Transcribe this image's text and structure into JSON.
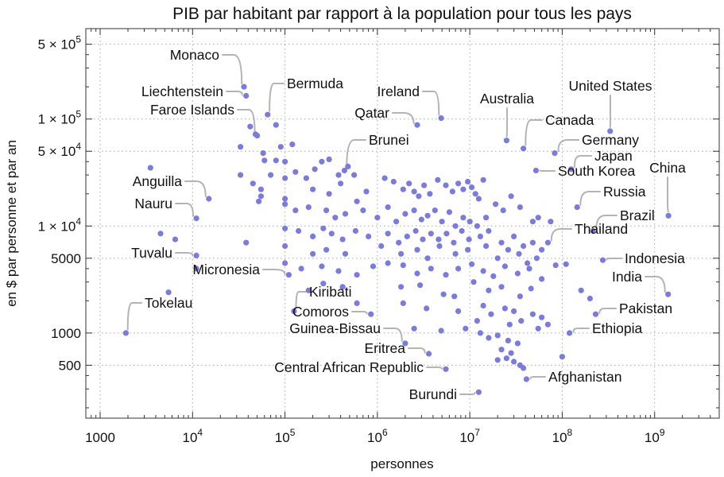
{
  "chart_data": {
    "type": "scatter",
    "title": "PIB par habitant par rapport à la population pour tous les pays",
    "xlabel": "personnes",
    "ylabel": "en $ par personne et par an",
    "xscale": "log",
    "yscale": "log",
    "xlim": [
      700,
      5000000000
    ],
    "ylim": [
      160,
      700000
    ],
    "grid": true,
    "x_ticks": [
      {
        "base": "1000",
        "exp": ""
      },
      {
        "base": "10",
        "exp": "4"
      },
      {
        "base": "10",
        "exp": "5"
      },
      {
        "base": "10",
        "exp": "6"
      },
      {
        "base": "10",
        "exp": "7"
      },
      {
        "base": "10",
        "exp": "8"
      },
      {
        "base": "10",
        "exp": "9"
      }
    ],
    "x_tick_values": [
      1000,
      10000,
      100000,
      1000000,
      10000000,
      100000000,
      1000000000
    ],
    "y_ticks": [
      {
        "base": "500",
        "exp": ""
      },
      {
        "base": "1000",
        "exp": ""
      },
      {
        "base": "5000",
        "exp": ""
      },
      {
        "base": "1 × 10",
        "exp": "4"
      },
      {
        "base": "5 × 10",
        "exp": "4"
      },
      {
        "base": "1 × 10",
        "exp": "5"
      },
      {
        "base": "5 × 10",
        "exp": "5"
      }
    ],
    "y_tick_values": [
      500,
      1000,
      5000,
      10000,
      50000,
      100000,
      500000
    ],
    "labeled_points": [
      {
        "name": "Monaco",
        "x": 36000,
        "y": 200000
      },
      {
        "name": "Liechtenstein",
        "x": 38000,
        "y": 165000
      },
      {
        "name": "Bermuda",
        "x": 65000,
        "y": 110000
      },
      {
        "name": "Faroe Islands",
        "x": 50000,
        "y": 70000
      },
      {
        "name": "Ireland",
        "x": 4900000,
        "y": 102000
      },
      {
        "name": "Qatar",
        "x": 2700000,
        "y": 88000
      },
      {
        "name": "Australia",
        "x": 25000000,
        "y": 63000
      },
      {
        "name": "United States",
        "x": 330000000,
        "y": 77000
      },
      {
        "name": "Canada",
        "x": 38000000,
        "y": 53000
      },
      {
        "name": "Germany",
        "x": 83000000,
        "y": 48000
      },
      {
        "name": "Brunei",
        "x": 440000,
        "y": 33000
      },
      {
        "name": "Japan",
        "x": 125000000,
        "y": 34000
      },
      {
        "name": "South Korea",
        "x": 52000000,
        "y": 33000
      },
      {
        "name": "China",
        "x": 1410000000,
        "y": 12500
      },
      {
        "name": "Anguilla",
        "x": 15000,
        "y": 18000
      },
      {
        "name": "Russia",
        "x": 145000000,
        "y": 15000
      },
      {
        "name": "Nauru",
        "x": 11000,
        "y": 11800
      },
      {
        "name": "Brazil",
        "x": 215000000,
        "y": 9000
      },
      {
        "name": "Thailand",
        "x": 70000000,
        "y": 7000
      },
      {
        "name": "Tuvalu",
        "x": 11000,
        "y": 5300
      },
      {
        "name": "Indonesia",
        "x": 275000000,
        "y": 4800
      },
      {
        "name": "Micronesia",
        "x": 110000,
        "y": 3500
      },
      {
        "name": "India",
        "x": 1400000000,
        "y": 2300
      },
      {
        "name": "Kiribati",
        "x": 125000,
        "y": 1600
      },
      {
        "name": "Comoros",
        "x": 850000,
        "y": 1500
      },
      {
        "name": "Tokelau",
        "x": 1900,
        "y": 1000
      },
      {
        "name": "Pakistan",
        "x": 230000000,
        "y": 1500
      },
      {
        "name": "Ethiopia",
        "x": 120000000,
        "y": 1000
      },
      {
        "name": "Guinea-Bissau",
        "x": 2000000,
        "y": 800
      },
      {
        "name": "Eritrea",
        "x": 3600000,
        "y": 640
      },
      {
        "name": "Central African Republic",
        "x": 5500000,
        "y": 460
      },
      {
        "name": "Afghanistan",
        "x": 41000000,
        "y": 370
      },
      {
        "name": "Burundi",
        "x": 12500000,
        "y": 280
      }
    ],
    "points": [
      [
        33000,
        55000
      ],
      [
        42000,
        85000
      ],
      [
        48000,
        72000
      ],
      [
        58000,
        48000
      ],
      [
        80000,
        88000
      ],
      [
        90000,
        55000
      ],
      [
        120000,
        58000
      ],
      [
        60000,
        41000
      ],
      [
        80000,
        41000
      ],
      [
        100000,
        40000
      ],
      [
        33000,
        30000
      ],
      [
        45000,
        25000
      ],
      [
        55000,
        22000
      ],
      [
        70000,
        30000
      ],
      [
        100000,
        28000
      ],
      [
        130000,
        32000
      ],
      [
        170000,
        28000
      ],
      [
        210000,
        34000
      ],
      [
        250000,
        40000
      ],
      [
        300000,
        42000
      ],
      [
        380000,
        30000
      ],
      [
        480000,
        36000
      ],
      [
        560000,
        30000
      ],
      [
        200000,
        22000
      ],
      [
        300000,
        20000
      ],
      [
        400000,
        25000
      ],
      [
        600000,
        17000
      ],
      [
        760000,
        21000
      ],
      [
        1200000,
        28000
      ],
      [
        1500000,
        26000
      ],
      [
        1900000,
        22000
      ],
      [
        2200000,
        25000
      ],
      [
        2500000,
        21000
      ],
      [
        2800000,
        19000
      ],
      [
        3200000,
        24000
      ],
      [
        3700000,
        20000
      ],
      [
        4500000,
        27000
      ],
      [
        5500000,
        24000
      ],
      [
        6500000,
        21000
      ],
      [
        7500000,
        25000
      ],
      [
        8500000,
        22000
      ],
      [
        9500000,
        26000
      ],
      [
        10500000,
        23000
      ],
      [
        11500000,
        20000
      ],
      [
        12500000,
        18000
      ],
      [
        14000000,
        27000
      ],
      [
        3500,
        35000
      ],
      [
        52000,
        17000
      ],
      [
        55000,
        19000
      ],
      [
        100000,
        18000
      ],
      [
        100000,
        16000
      ],
      [
        130000,
        14000
      ],
      [
        180000,
        15000
      ],
      [
        280000,
        14000
      ],
      [
        350000,
        12000
      ],
      [
        450000,
        13000
      ],
      [
        700000,
        14000
      ],
      [
        1000000,
        12000
      ],
      [
        1300000,
        15000
      ],
      [
        1600000,
        11000
      ],
      [
        2000000,
        13000
      ],
      [
        2500000,
        14000
      ],
      [
        3000000,
        11500
      ],
      [
        3500000,
        12500
      ],
      [
        4200000,
        14000
      ],
      [
        5000000,
        11000
      ],
      [
        6000000,
        13500
      ],
      [
        7000000,
        10000
      ],
      [
        8500000,
        12000
      ],
      [
        10000000,
        11000
      ],
      [
        12000000,
        10000
      ],
      [
        15000000,
        12000
      ],
      [
        19000000,
        16000
      ],
      [
        23000000,
        14000
      ],
      [
        28000000,
        19000
      ],
      [
        35000000,
        15000
      ],
      [
        48000000,
        11000
      ],
      [
        55000000,
        12000
      ],
      [
        75000000,
        11000
      ],
      [
        100000,
        9500
      ],
      [
        140000,
        9000
      ],
      [
        200000,
        8000
      ],
      [
        260000,
        9500
      ],
      [
        320000,
        8500
      ],
      [
        420000,
        7500
      ],
      [
        580000,
        9000
      ],
      [
        800000,
        8000
      ],
      [
        1300000,
        8500
      ],
      [
        1700000,
        7000
      ],
      [
        2100000,
        8000
      ],
      [
        2600000,
        9000
      ],
      [
        3100000,
        7500
      ],
      [
        3800000,
        8500
      ],
      [
        4600000,
        7500
      ],
      [
        5600000,
        8500
      ],
      [
        6700000,
        7000
      ],
      [
        8200000,
        9000
      ],
      [
        9800000,
        7500
      ],
      [
        13000000,
        8000
      ],
      [
        16000000,
        9000
      ],
      [
        22000000,
        7000
      ],
      [
        30000000,
        8000
      ],
      [
        38000000,
        6500
      ],
      [
        48000000,
        7000
      ],
      [
        60000000,
        6000
      ],
      [
        4500,
        8500
      ],
      [
        6500,
        7500
      ],
      [
        38000,
        7000
      ],
      [
        100000,
        6500
      ],
      [
        200000,
        5500
      ],
      [
        280000,
        6000
      ],
      [
        450000,
        5500
      ],
      [
        1100000,
        6500
      ],
      [
        1800000,
        5500
      ],
      [
        2700000,
        6000
      ],
      [
        3500000,
        5000
      ],
      [
        4700000,
        6500
      ],
      [
        7000000,
        5500
      ],
      [
        9500000,
        6000
      ],
      [
        15000000,
        6500
      ],
      [
        20000000,
        5000
      ],
      [
        26000000,
        6000
      ],
      [
        34000000,
        5500
      ],
      [
        42000000,
        4500
      ],
      [
        53000000,
        5000
      ],
      [
        11000,
        4000
      ],
      [
        100000,
        4500
      ],
      [
        150000,
        4000
      ],
      [
        250000,
        4200
      ],
      [
        380000,
        3800
      ],
      [
        600000,
        3500
      ],
      [
        900000,
        4200
      ],
      [
        1300000,
        4500
      ],
      [
        1900000,
        4300
      ],
      [
        2700000,
        3600
      ],
      [
        3800000,
        4000
      ],
      [
        5500000,
        3500
      ],
      [
        7500000,
        4000
      ],
      [
        10500000,
        4400
      ],
      [
        14000000,
        3800
      ],
      [
        18000000,
        3400
      ],
      [
        24000000,
        4200
      ],
      [
        33000000,
        3600
      ],
      [
        44000000,
        4000
      ],
      [
        60000000,
        3200
      ],
      [
        85000000,
        4300
      ],
      [
        110000000,
        4400
      ],
      [
        5500,
        2400
      ],
      [
        180000,
        2500
      ],
      [
        260000,
        2900
      ],
      [
        420000,
        2700
      ],
      [
        1800000,
        2700
      ],
      [
        2900000,
        2800
      ],
      [
        5200000,
        2300
      ],
      [
        6800000,
        2200
      ],
      [
        11000000,
        3000
      ],
      [
        16000000,
        2500
      ],
      [
        22000000,
        2700
      ],
      [
        35000000,
        2200
      ],
      [
        46000000,
        2600
      ],
      [
        160000000,
        2500
      ],
      [
        200000000,
        2100
      ],
      [
        600000,
        1900
      ],
      [
        1900000,
        1900
      ],
      [
        3400000,
        1700
      ],
      [
        7500000,
        1600
      ],
      [
        14000000,
        1800
      ],
      [
        17000000,
        1500
      ],
      [
        24000000,
        1700
      ],
      [
        30000000,
        1600
      ],
      [
        48000000,
        1500
      ],
      [
        60000000,
        1400
      ],
      [
        12000000,
        1300
      ],
      [
        27000000,
        1200
      ],
      [
        36000000,
        1300
      ],
      [
        55000000,
        1100
      ],
      [
        70000000,
        1200
      ],
      [
        2500000,
        1100
      ],
      [
        4900000,
        1050
      ],
      [
        9000000,
        1100
      ],
      [
        13000000,
        1000
      ],
      [
        16000000,
        900
      ],
      [
        20000000,
        950
      ],
      [
        26000000,
        850
      ],
      [
        33000000,
        800
      ],
      [
        22000000,
        700
      ],
      [
        28000000,
        650
      ],
      [
        20000000,
        560
      ],
      [
        25000000,
        580
      ],
      [
        30000000,
        540
      ],
      [
        35000000,
        500
      ],
      [
        38000000,
        470
      ],
      [
        100000000,
        600
      ]
    ]
  }
}
